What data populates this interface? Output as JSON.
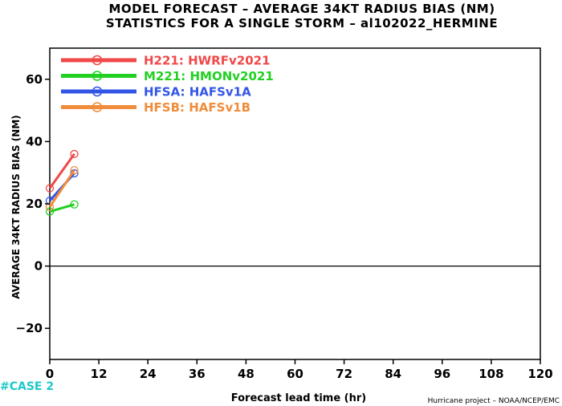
{
  "title_line1": "MODEL FORECAST – AVERAGE 34KT RADIUS BIAS (NM)",
  "title_line2": "STATISTICS FOR A SINGLE STORM – al102022_HERMINE",
  "case_label": "#CASE 2",
  "credit": "Hurricane project – NOAA/NCEP/EMC",
  "chart_data": {
    "type": "line",
    "title": "MODEL FORECAST – AVERAGE 34KT RADIUS BIAS (NM)",
    "subtitle": "STATISTICS FOR A SINGLE STORM – al102022_HERMINE",
    "xlabel": "Forecast lead time (hr)",
    "ylabel": "AVERAGE 34KT RADIUS BIAS (NM)",
    "xlim": [
      0,
      120
    ],
    "ylim": [
      -30,
      70
    ],
    "xticks": [
      0,
      12,
      24,
      36,
      48,
      60,
      72,
      84,
      96,
      108,
      120
    ],
    "yticks": [
      -20,
      0,
      20,
      40,
      60
    ],
    "zero_line": true,
    "legend_position": "top-left",
    "series": [
      {
        "name": "H221: HWRFv2021",
        "color": "#f04848",
        "x": [
          0,
          6
        ],
        "y": [
          25,
          36
        ]
      },
      {
        "name": "M221: HMONv2021",
        "color": "#22d022",
        "x": [
          0,
          6
        ],
        "y": [
          17.5,
          19.8
        ]
      },
      {
        "name": "HFSA: HAFSv1A",
        "color": "#3355e6",
        "x": [
          0,
          6
        ],
        "y": [
          21,
          29.8
        ]
      },
      {
        "name": "HFSB: HAFSv1B",
        "color": "#f08c3a",
        "x": [
          0,
          6
        ],
        "y": [
          19,
          30.8
        ]
      }
    ]
  }
}
